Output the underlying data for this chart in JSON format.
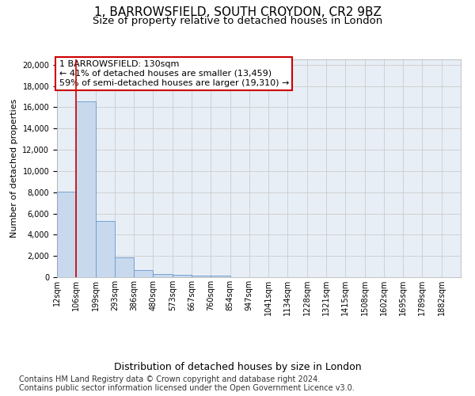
{
  "title1": "1, BARROWSFIELD, SOUTH CROYDON, CR2 9BZ",
  "title2": "Size of property relative to detached houses in London",
  "xlabel": "Distribution of detached houses by size in London",
  "ylabel": "Number of detached properties",
  "bin_labels": [
    "12sqm",
    "106sqm",
    "199sqm",
    "293sqm",
    "386sqm",
    "480sqm",
    "573sqm",
    "667sqm",
    "760sqm",
    "854sqm",
    "947sqm",
    "1041sqm",
    "1134sqm",
    "1228sqm",
    "1321sqm",
    "1415sqm",
    "1508sqm",
    "1602sqm",
    "1695sqm",
    "1789sqm",
    "1882sqm"
  ],
  "bar_heights": [
    8050,
    16550,
    5300,
    1850,
    670,
    310,
    210,
    165,
    130,
    0,
    0,
    0,
    0,
    0,
    0,
    0,
    0,
    0,
    0,
    0,
    0
  ],
  "bar_color": "#c8d9ee",
  "bar_edge_color": "#6699cc",
  "vline_x": 1,
  "vline_color": "#cc0000",
  "annotation_text": "1 BARROWSFIELD: 130sqm\n← 41% of detached houses are smaller (13,459)\n59% of semi-detached houses are larger (19,310) →",
  "annotation_box_color": "#cc0000",
  "ylim": [
    0,
    20500
  ],
  "yticks": [
    0,
    2000,
    4000,
    6000,
    8000,
    10000,
    12000,
    14000,
    16000,
    18000,
    20000
  ],
  "grid_color": "#cccccc",
  "bg_color": "#e8eef6",
  "footer_line1": "Contains HM Land Registry data © Crown copyright and database right 2024.",
  "footer_line2": "Contains public sector information licensed under the Open Government Licence v3.0.",
  "title1_fontsize": 11,
  "title2_fontsize": 9.5,
  "xlabel_fontsize": 9,
  "ylabel_fontsize": 8,
  "tick_fontsize": 7,
  "annotation_fontsize": 8,
  "footer_fontsize": 7
}
